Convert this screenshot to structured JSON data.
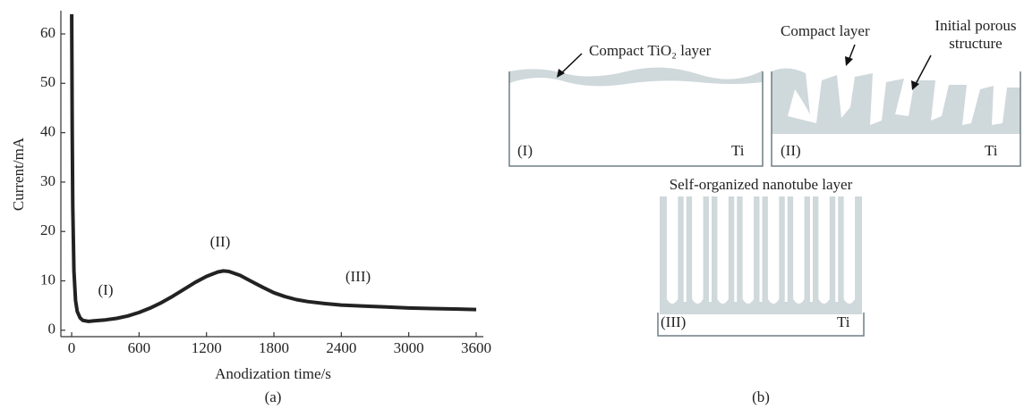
{
  "chart_data": {
    "type": "line",
    "panel_label": "(a)",
    "x_label": "Anodization time/s",
    "y_label": "Current/mA",
    "x": [
      0,
      5,
      10,
      20,
      35,
      50,
      75,
      100,
      150,
      200,
      300,
      400,
      500,
      600,
      700,
      800,
      900,
      1000,
      1100,
      1200,
      1300,
      1350,
      1400,
      1500,
      1600,
      1700,
      1800,
      1900,
      2000,
      2100,
      2250,
      2400,
      2600,
      2800,
      3000,
      3200,
      3400,
      3600
    ],
    "values": [
      64,
      40,
      25,
      12,
      6,
      3.8,
      2.5,
      2,
      1.8,
      1.9,
      2.1,
      2.4,
      2.9,
      3.6,
      4.5,
      5.6,
      6.9,
      8.3,
      9.7,
      10.9,
      11.8,
      12,
      11.9,
      11.1,
      9.9,
      8.7,
      7.6,
      6.8,
      6.2,
      5.8,
      5.4,
      5.1,
      4.9,
      4.7,
      4.5,
      4.4,
      4.3,
      4.2
    ],
    "color": "#222222",
    "annotations": [
      "(I)",
      "(II)",
      "(III)"
    ],
    "xlim": [
      -96,
      3664
    ],
    "ylim": [
      -1.3,
      64.7
    ],
    "xticks": [
      0,
      600,
      1200,
      1800,
      2400,
      3000,
      3600
    ],
    "yticks": [
      0,
      10,
      20,
      30,
      40,
      50,
      60
    ]
  },
  "diagram": {
    "panel_label": "(b)",
    "stage_1": {
      "callout": "Compact TiO₂ layer",
      "label": "(I)",
      "substrate": "Ti"
    },
    "stage_2": {
      "callouts": [
        "Compact layer",
        "Initial porous",
        "structure"
      ],
      "label": "(II)",
      "substrate": "Ti"
    },
    "stage_3": {
      "title": "Self-organized nanotube layer",
      "label": "(III)",
      "substrate": "Ti"
    }
  }
}
